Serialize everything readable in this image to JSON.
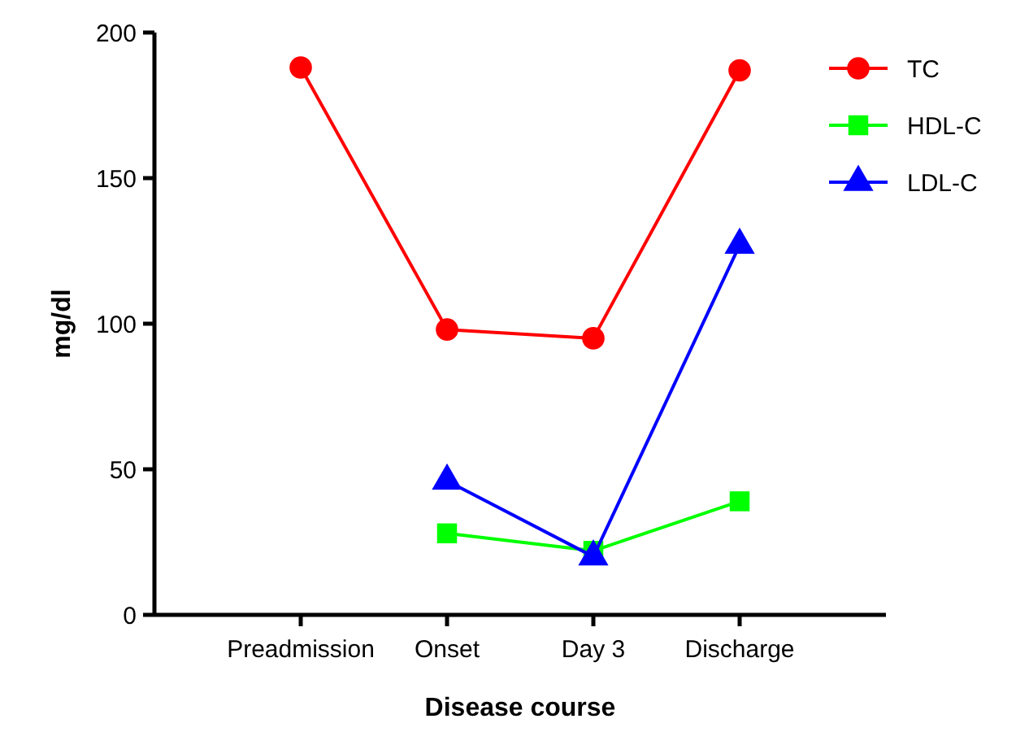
{
  "chart_data": {
    "type": "line",
    "xlabel": "Disease course",
    "ylabel": "mg/dl",
    "categories": [
      "Preadmission",
      "Onset",
      "Day 3",
      "Discharge"
    ],
    "series": [
      {
        "name": "TC",
        "color": "#ff0000",
        "marker": "circle",
        "values": [
          188,
          98,
          95,
          187
        ]
      },
      {
        "name": "HDL-C",
        "color": "#00ff00",
        "marker": "square",
        "values": [
          null,
          28,
          22,
          39
        ]
      },
      {
        "name": "LDL-C",
        "color": "#0000ff",
        "marker": "triangle",
        "values": [
          null,
          46,
          20,
          127
        ]
      }
    ],
    "ylim": [
      0,
      200
    ],
    "yticks": [
      0,
      50,
      100,
      150,
      200
    ],
    "grid": false,
    "legend": "top right",
    "line_style": "solid"
  }
}
